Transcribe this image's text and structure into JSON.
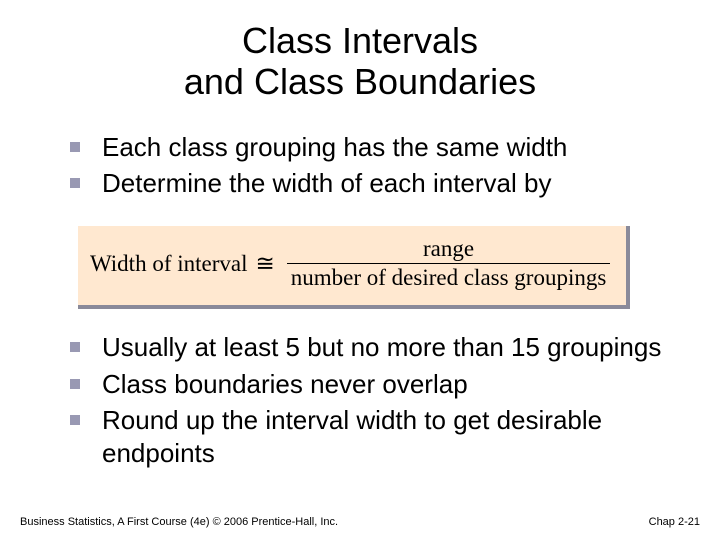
{
  "title_line1": "Class Intervals",
  "title_line2": "and Class Boundaries",
  "bullets_top": [
    "Each class grouping has the same width",
    "Determine the width of each interval by"
  ],
  "formula": {
    "lhs": "Width of interval",
    "approx": "≅",
    "numerator": "range",
    "denominator": "number of desired class groupings"
  },
  "bullets_bottom": [
    "Usually at least 5 but no more than 15 groupings",
    "Class boundaries never overlap",
    "Round up the interval width to get desirable endpoints"
  ],
  "footer_left": "Business Statistics, A First Course (4e) © 2006 Prentice-Hall, Inc.",
  "footer_right": "Chap 2-21",
  "colors": {
    "bullet_marker": "#9999b3",
    "formula_bg": "#ffe8d0",
    "formula_shadow": "#8a8a9a"
  }
}
